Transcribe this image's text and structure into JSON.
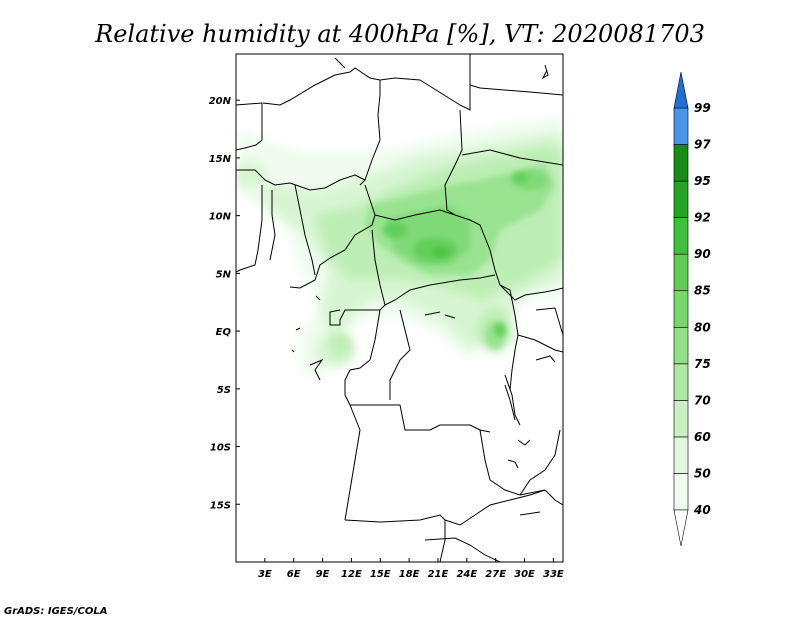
{
  "title": "Relative humidity at 400hPa [%], VT: 2020081703",
  "credit": "GrADS: IGES/COLA",
  "x_ticks": [
    "3E",
    "6E",
    "9E",
    "12E",
    "15E",
    "18E",
    "21E",
    "24E",
    "27E",
    "30E",
    "33E"
  ],
  "y_ticks": [
    "20N",
    "15N",
    "10N",
    "5N",
    "EQ",
    "5S",
    "10S",
    "15S"
  ],
  "colorbar": {
    "labels": [
      "40",
      "50",
      "60",
      "70",
      "75",
      "80",
      "85",
      "90",
      "92",
      "95",
      "97",
      "99"
    ],
    "colors": [
      "#f0fcef",
      "#e0f7dc",
      "#c8f0c2",
      "#aee8a6",
      "#93e08a",
      "#78d86e",
      "#5ecd55",
      "#3fbf3a",
      "#23a524",
      "#168d16",
      "#4896ea",
      "#1f6fd8",
      "#1f57bd"
    ]
  },
  "chart_data": {
    "type": "heatmap",
    "title": "Relative humidity at 400hPa [%], VT: 2020081703",
    "variable": "Relative humidity",
    "units": "%",
    "level": "400hPa",
    "valid_time": "2020081703",
    "lon_range": [
      0,
      34
    ],
    "lat_range": [
      -20,
      24
    ],
    "color_levels": [
      40,
      50,
      60,
      70,
      75,
      80,
      85,
      90,
      92,
      95,
      97,
      99
    ],
    "features": [
      {
        "lon": 21,
        "lat": 9,
        "max_rh": 85
      },
      {
        "lon": 24,
        "lat": 12,
        "max_rh": 80
      },
      {
        "lon": 14,
        "lat": 11,
        "max_rh": 80
      },
      {
        "lon": 28,
        "lat": 1,
        "max_rh": 85
      },
      {
        "lon": 32,
        "lat": 15,
        "max_rh": 75
      },
      {
        "lon": 9,
        "lat": 7,
        "max_rh": 70
      },
      {
        "lon": 10,
        "lat": -2,
        "max_rh": 70
      },
      {
        "lon": 2,
        "lat": 15,
        "max_rh": 50
      }
    ]
  }
}
